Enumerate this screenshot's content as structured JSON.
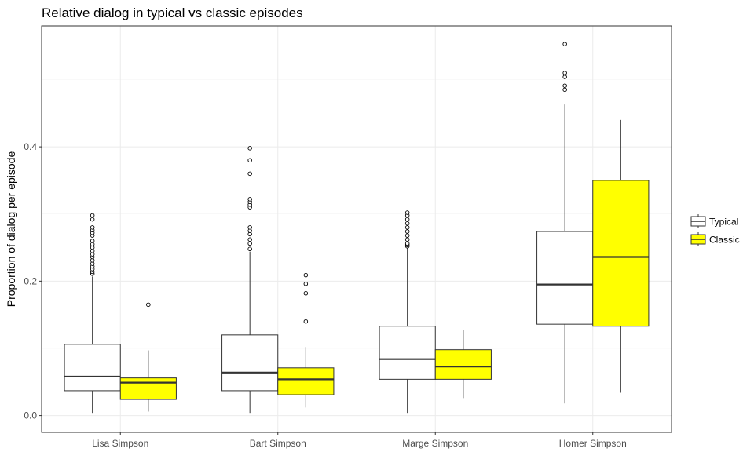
{
  "chart_data": {
    "type": "boxplot",
    "title": "Relative dialog in typical vs classic episodes",
    "xlabel": "",
    "ylabel": "Proportion of dialog per episode",
    "ylim": [
      -0.025,
      0.58
    ],
    "y_ticks": [
      0.0,
      0.2,
      0.4
    ],
    "y_tick_labels": [
      "0.0",
      "0.2",
      "0.4"
    ],
    "grid": true,
    "legend_position": "right",
    "categories": [
      "Lisa Simpson",
      "Bart Simpson",
      "Marge Simpson",
      "Homer Simpson"
    ],
    "series": [
      {
        "name": "Typical",
        "color": "#ffffff",
        "boxes": [
          {
            "whisker_low": 0.004,
            "q1": 0.037,
            "median": 0.058,
            "q3": 0.106,
            "whisker_high": 0.207,
            "outliers": [
              0.211,
              0.214,
              0.218,
              0.222,
              0.226,
              0.231,
              0.236,
              0.24,
              0.245,
              0.25,
              0.255,
              0.26,
              0.268,
              0.272,
              0.276,
              0.28,
              0.292,
              0.298
            ]
          },
          {
            "whisker_low": 0.004,
            "q1": 0.037,
            "median": 0.064,
            "q3": 0.12,
            "whisker_high": 0.244,
            "outliers": [
              0.248,
              0.256,
              0.262,
              0.27,
              0.275,
              0.28,
              0.31,
              0.314,
              0.318,
              0.322,
              0.36,
              0.38,
              0.398
            ]
          },
          {
            "whisker_low": 0.004,
            "q1": 0.054,
            "median": 0.084,
            "q3": 0.133,
            "whisker_high": 0.25,
            "outliers": [
              0.252,
              0.254,
              0.256,
              0.262,
              0.268,
              0.274,
              0.28,
              0.286,
              0.292,
              0.298,
              0.302
            ]
          },
          {
            "whisker_low": 0.018,
            "q1": 0.136,
            "median": 0.195,
            "q3": 0.274,
            "whisker_high": 0.463,
            "outliers": [
              0.485,
              0.491,
              0.504,
              0.51,
              0.553
            ]
          }
        ]
      },
      {
        "name": "Classic",
        "color": "#ffff00",
        "boxes": [
          {
            "whisker_low": 0.006,
            "q1": 0.024,
            "median": 0.049,
            "q3": 0.056,
            "whisker_high": 0.097,
            "outliers": [
              0.165
            ]
          },
          {
            "whisker_low": 0.012,
            "q1": 0.031,
            "median": 0.054,
            "q3": 0.071,
            "whisker_high": 0.102,
            "outliers": [
              0.14,
              0.182,
              0.196,
              0.209
            ]
          },
          {
            "whisker_low": 0.026,
            "q1": 0.054,
            "median": 0.073,
            "q3": 0.098,
            "whisker_high": 0.127,
            "outliers": []
          },
          {
            "whisker_low": 0.034,
            "q1": 0.133,
            "median": 0.236,
            "q3": 0.35,
            "whisker_high": 0.44,
            "outliers": []
          }
        ]
      }
    ]
  }
}
